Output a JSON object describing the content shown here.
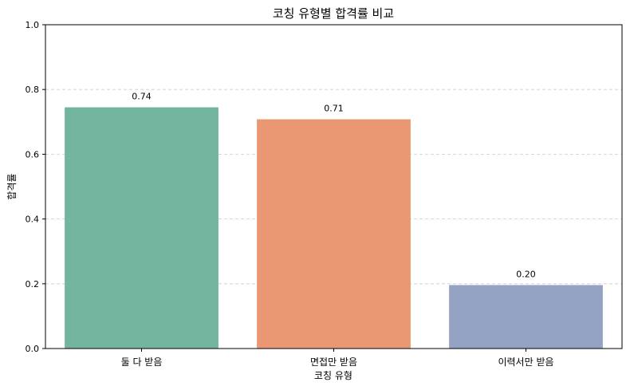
{
  "chart_data": {
    "type": "bar",
    "title": "코칭 유형별 합격률 비교",
    "xlabel": "코칭 유형",
    "ylabel": "합격률",
    "categories": [
      "둘 다 받음",
      "면접만 받음",
      "이력서만 받음"
    ],
    "values": [
      0.745,
      0.708,
      0.196
    ],
    "data_labels": [
      "0.74",
      "0.71",
      "0.20"
    ],
    "colors": [
      "#74b5a0",
      "#e99873",
      "#94a3c3"
    ],
    "ylim": [
      0,
      1.0
    ],
    "yticks": [
      0.0,
      0.2,
      0.4,
      0.6,
      0.8,
      1.0
    ],
    "ytick_labels": [
      "0.0",
      "0.2",
      "0.4",
      "0.6",
      "0.8",
      "1.0"
    ],
    "grid": "y-dashed",
    "legend": "none"
  }
}
